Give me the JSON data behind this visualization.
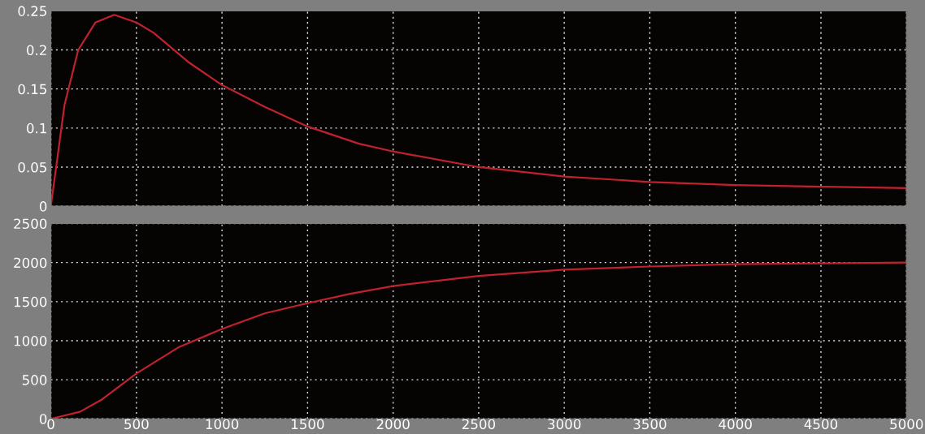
{
  "chart_data": [
    {
      "type": "line",
      "x": [
        0,
        80,
        160,
        260,
        370,
        500,
        600,
        800,
        1000,
        1250,
        1500,
        1800,
        2000,
        2500,
        3000,
        3500,
        4000,
        4500,
        5000
      ],
      "series": [
        {
          "color": "#c0222d",
          "values": [
            0,
            0.13,
            0.2,
            0.235,
            0.245,
            0.235,
            0.222,
            0.185,
            0.155,
            0.127,
            0.102,
            0.08,
            0.07,
            0.05,
            0.038,
            0.031,
            0.027,
            0.025,
            0.023
          ]
        }
      ],
      "xlim": [
        0,
        5000
      ],
      "xticks": [
        0,
        500,
        1000,
        1500,
        2000,
        2500,
        3000,
        3500,
        4000,
        4500,
        5000
      ],
      "ylim": [
        0,
        0.25
      ],
      "yticks": [
        0,
        0.05,
        0.1,
        0.15,
        0.2,
        0.25
      ],
      "grid": true,
      "line_style": "solid",
      "tick_labels": "y"
    },
    {
      "type": "line",
      "x": [
        0,
        170,
        300,
        500,
        750,
        1000,
        1250,
        1500,
        1750,
        2000,
        2500,
        3000,
        3500,
        4000,
        4500,
        5000
      ],
      "series": [
        {
          "color": "#c0222d",
          "values": [
            0,
            90,
            250,
            580,
            920,
            1150,
            1350,
            1480,
            1600,
            1700,
            1830,
            1910,
            1950,
            1980,
            1990,
            2000
          ]
        }
      ],
      "xlim": [
        0,
        5000
      ],
      "xticks": [
        0,
        500,
        1000,
        1500,
        2000,
        2500,
        3000,
        3500,
        4000,
        4500,
        5000
      ],
      "ylim": [
        0,
        2500
      ],
      "yticks": [
        0,
        500,
        1000,
        1500,
        2000,
        2500
      ],
      "grid": true,
      "line_style": "solid"
    }
  ]
}
